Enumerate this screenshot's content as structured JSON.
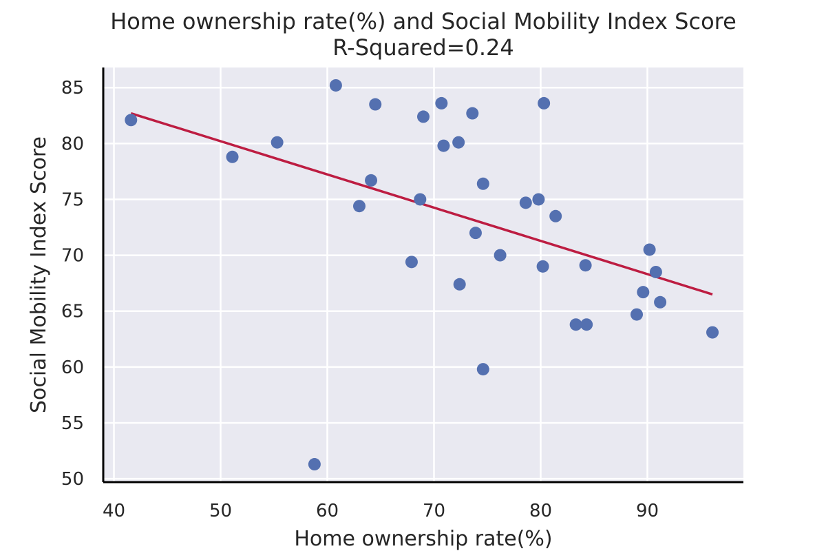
{
  "chart_data": {
    "type": "scatter",
    "title": "Home ownership rate(%) and Social Mobility Index Score",
    "subtitle": "R-Squared=0.24",
    "xlabel": "Home ownership rate(%)",
    "ylabel": "Social Mobility Index Score",
    "xlim": [
      39,
      99
    ],
    "ylim": [
      49.7,
      86.8
    ],
    "xticks": [
      40,
      50,
      60,
      70,
      80,
      90
    ],
    "yticks": [
      50,
      55,
      60,
      65,
      70,
      75,
      80,
      85
    ],
    "grid": true,
    "legend": "none",
    "colors": {
      "points": "#5470b0",
      "trendline": "#bd1d42",
      "plot_bg": "#e9e9f1",
      "grid": "#ffffff",
      "axis": "#000000"
    },
    "points": [
      {
        "x": 41.6,
        "y": 82.1
      },
      {
        "x": 51.1,
        "y": 78.8
      },
      {
        "x": 55.3,
        "y": 80.1
      },
      {
        "x": 58.8,
        "y": 51.3
      },
      {
        "x": 60.8,
        "y": 85.2
      },
      {
        "x": 63.0,
        "y": 74.4
      },
      {
        "x": 64.1,
        "y": 76.7
      },
      {
        "x": 64.5,
        "y": 83.5
      },
      {
        "x": 67.9,
        "y": 69.4
      },
      {
        "x": 68.7,
        "y": 75.0
      },
      {
        "x": 69.0,
        "y": 82.4
      },
      {
        "x": 70.7,
        "y": 83.6
      },
      {
        "x": 70.9,
        "y": 79.8
      },
      {
        "x": 72.3,
        "y": 80.1
      },
      {
        "x": 72.4,
        "y": 67.4
      },
      {
        "x": 73.6,
        "y": 82.7
      },
      {
        "x": 73.9,
        "y": 72.0
      },
      {
        "x": 74.6,
        "y": 76.4
      },
      {
        "x": 74.6,
        "y": 59.8
      },
      {
        "x": 76.2,
        "y": 70.0
      },
      {
        "x": 78.6,
        "y": 74.7
      },
      {
        "x": 79.8,
        "y": 75.0
      },
      {
        "x": 80.2,
        "y": 69.0
      },
      {
        "x": 80.3,
        "y": 83.6
      },
      {
        "x": 81.4,
        "y": 73.5
      },
      {
        "x": 83.3,
        "y": 63.8
      },
      {
        "x": 84.2,
        "y": 69.1
      },
      {
        "x": 84.3,
        "y": 63.8
      },
      {
        "x": 89.0,
        "y": 64.7
      },
      {
        "x": 89.6,
        "y": 66.7
      },
      {
        "x": 90.2,
        "y": 70.5
      },
      {
        "x": 90.8,
        "y": 68.5
      },
      {
        "x": 91.2,
        "y": 65.8
      },
      {
        "x": 96.1,
        "y": 63.1
      }
    ],
    "trendline": {
      "x": [
        41.6,
        96.1
      ],
      "y": [
        82.7,
        66.5
      ]
    }
  }
}
